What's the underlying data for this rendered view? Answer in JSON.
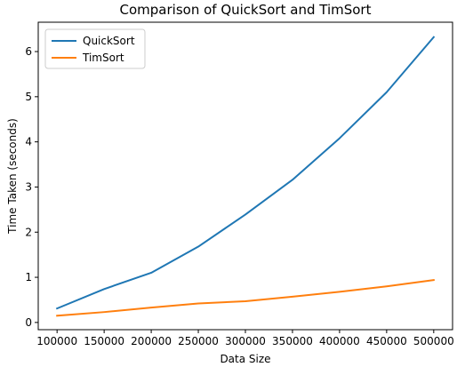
{
  "chart_data": {
    "type": "line",
    "title": "Comparison of QuickSort and TimSort",
    "xlabel": "Data Size",
    "ylabel": "Time Taken (seconds)",
    "x": [
      100000,
      150000,
      200000,
      250000,
      300000,
      350000,
      400000,
      450000,
      500000
    ],
    "xlim": [
      80000,
      520000
    ],
    "ylim": [
      -0.16,
      6.65
    ],
    "xticks": [
      100000,
      150000,
      200000,
      250000,
      300000,
      350000,
      400000,
      450000,
      500000
    ],
    "yticks": [
      0,
      1,
      2,
      3,
      4,
      5,
      6
    ],
    "grid": false,
    "legend_position": "top-left",
    "series": [
      {
        "name": "QuickSort",
        "color": "#1f77b4",
        "values": [
          0.31,
          0.74,
          1.1,
          1.68,
          2.39,
          3.16,
          4.08,
          5.1,
          6.32
        ]
      },
      {
        "name": "TimSort",
        "color": "#ff7f0e",
        "values": [
          0.15,
          0.23,
          0.33,
          0.42,
          0.47,
          0.57,
          0.68,
          0.8,
          0.94
        ]
      }
    ]
  }
}
